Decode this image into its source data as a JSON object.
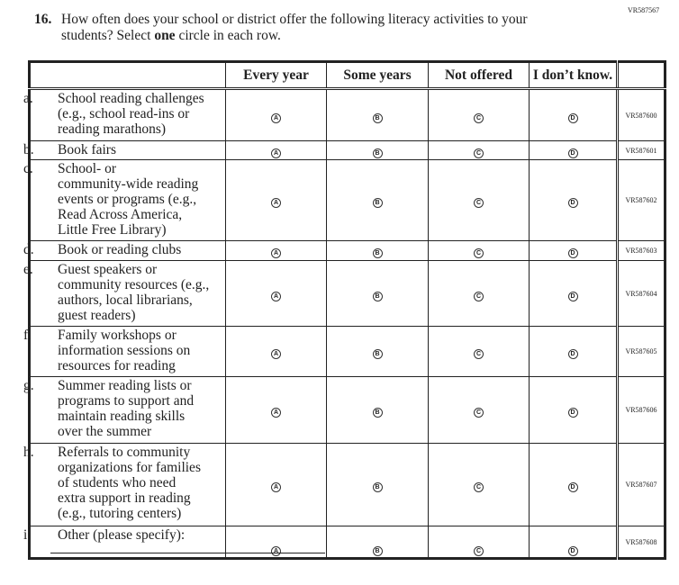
{
  "form_code": "VR587567",
  "question": {
    "number": "16.",
    "line1": "How often does your school or district offer the following literacy activities to your",
    "line2_pre": "students? Select ",
    "line2_bold": "one",
    "line2_post": " circle in each row."
  },
  "columns": [
    "Every year",
    "Some years",
    "Not offered",
    "I don’t know."
  ],
  "bubble_letters": [
    "A",
    "B",
    "C",
    "D"
  ],
  "rows": [
    {
      "letter": "a.",
      "text": "School reading challenges (e.g., school read-ins or reading marathons)",
      "code": "VR587600"
    },
    {
      "letter": "b.",
      "text": "Book fairs",
      "code": "VR587601"
    },
    {
      "letter": "c.",
      "text": "School- or community-wide reading events or programs (e.g., Read Across America, Little Free Library)",
      "code": "VR587602"
    },
    {
      "letter": "d.",
      "text": "Book or reading clubs",
      "code": "VR587603"
    },
    {
      "letter": "e.",
      "text": "Guest speakers or community resources (e.g., authors, local librarians, guest readers)",
      "code": "VR587604"
    },
    {
      "letter": "f.",
      "text": "Family workshops or information sessions on resources for reading",
      "code": "VR587605"
    },
    {
      "letter": "g.",
      "text": "Summer reading lists or programs to support and maintain reading skills over the summer",
      "code": "VR587606"
    },
    {
      "letter": "h.",
      "text": "Referrals to community organizations for families of students who need extra support in reading (e.g., tutoring centers)",
      "code": "VR587607"
    },
    {
      "letter": "i.",
      "text": "Other (please specify):",
      "code": "VR587608"
    }
  ]
}
